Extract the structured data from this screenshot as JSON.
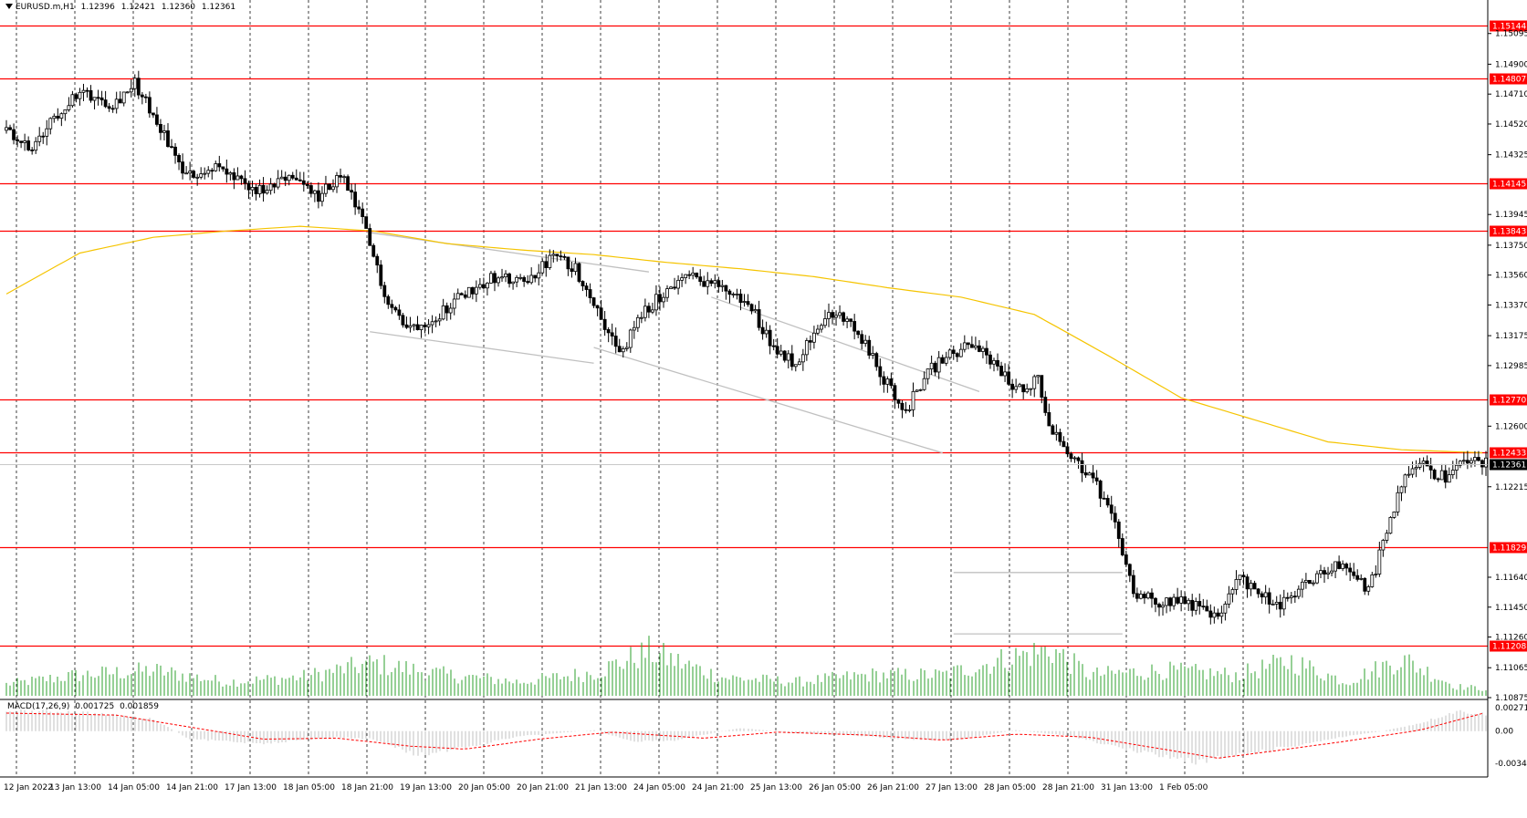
{
  "header": {
    "symbol": "EURUSD.m,H1",
    "open": "1.12396",
    "high": "1.12421",
    "low": "1.12360",
    "close": "1.12361"
  },
  "macd_header": {
    "label": "MACD(17,26,9)",
    "main": "0.001725",
    "signal": "0.001859"
  },
  "chart_data": {
    "type": "candlestick",
    "symbol": "EURUSD.m",
    "timeframe": "H1",
    "ylim": [
      1.10875,
      1.1525
    ],
    "price_ticks": [
      "1.15095",
      "1.14900",
      "1.14710",
      "1.14520",
      "1.14325",
      "1.13945",
      "1.13750",
      "1.13560",
      "1.13370",
      "1.13175",
      "1.12985",
      "1.12600",
      "1.12215",
      "1.11640",
      "1.11450",
      "1.11260",
      "1.11065",
      "1.10875"
    ],
    "x_ticks": [
      "12 Jan 2022",
      "13 Jan 13:00",
      "14 Jan 05:00",
      "14 Jan 21:00",
      "17 Jan 13:00",
      "18 Jan 05:00",
      "18 Jan 21:00",
      "19 Jan 13:00",
      "20 Jan 05:00",
      "20 Jan 21:00",
      "21 Jan 13:00",
      "24 Jan 05:00",
      "24 Jan 21:00",
      "25 Jan 13:00",
      "26 Jan 05:00",
      "26 Jan 21:00",
      "27 Jan 13:00",
      "28 Jan 05:00",
      "28 Jan 21:00",
      "31 Jan 13:00",
      "1 Feb 05:00"
    ],
    "levels": [
      "1.15144",
      "1.14807",
      "1.14145",
      "1.13843",
      "1.12770",
      "1.12433",
      "1.11829",
      "1.11208"
    ],
    "current_price": "1.12361",
    "price_path": [
      [
        0,
        1.1448
      ],
      [
        8,
        1.1435
      ],
      [
        16,
        1.1462
      ],
      [
        22,
        1.1472
      ],
      [
        30,
        1.1465
      ],
      [
        36,
        1.1478
      ],
      [
        44,
        1.1445
      ],
      [
        50,
        1.1418
      ],
      [
        58,
        1.1425
      ],
      [
        66,
        1.1412
      ],
      [
        72,
        1.1408
      ],
      [
        78,
        1.142
      ],
      [
        86,
        1.1405
      ],
      [
        92,
        1.142
      ],
      [
        98,
        1.139
      ],
      [
        104,
        1.1345
      ],
      [
        110,
        1.1322
      ],
      [
        118,
        1.133
      ],
      [
        126,
        1.1345
      ],
      [
        134,
        1.1355
      ],
      [
        142,
        1.135
      ],
      [
        150,
        1.1368
      ],
      [
        156,
        1.136
      ],
      [
        162,
        1.1335
      ],
      [
        168,
        1.1305
      ],
      [
        174,
        1.133
      ],
      [
        180,
        1.1345
      ],
      [
        186,
        1.1355
      ],
      [
        192,
        1.1352
      ],
      [
        198,
        1.1345
      ],
      [
        204,
        1.1335
      ],
      [
        210,
        1.131
      ],
      [
        216,
        1.13
      ],
      [
        222,
        1.1325
      ],
      [
        228,
        1.1332
      ],
      [
        234,
        1.1315
      ],
      [
        240,
        1.129
      ],
      [
        246,
        1.127
      ],
      [
        252,
        1.1295
      ],
      [
        258,
        1.1305
      ],
      [
        264,
        1.1312
      ],
      [
        270,
        1.13
      ],
      [
        276,
        1.1283
      ],
      [
        282,
        1.129
      ],
      [
        286,
        1.1255
      ],
      [
        292,
        1.124
      ],
      [
        298,
        1.1222
      ],
      [
        304,
        1.119
      ],
      [
        308,
        1.1155
      ],
      [
        314,
        1.1148
      ],
      [
        320,
        1.115
      ],
      [
        326,
        1.1145
      ],
      [
        332,
        1.1138
      ],
      [
        336,
        1.1165
      ],
      [
        342,
        1.1155
      ],
      [
        348,
        1.1145
      ],
      [
        354,
        1.1158
      ],
      [
        360,
        1.1168
      ],
      [
        366,
        1.1172
      ],
      [
        372,
        1.1155
      ],
      [
        378,
        1.12
      ],
      [
        382,
        1.123
      ],
      [
        386,
        1.124
      ],
      [
        390,
        1.123
      ],
      [
        394,
        1.1226
      ],
      [
        398,
        1.124
      ],
      [
        403,
        1.1236
      ]
    ],
    "sma_path": [
      [
        0,
        1.1344
      ],
      [
        20,
        1.137
      ],
      [
        40,
        1.138
      ],
      [
        60,
        1.1384
      ],
      [
        80,
        1.1387
      ],
      [
        100,
        1.1384
      ],
      [
        120,
        1.1376
      ],
      [
        140,
        1.1372
      ],
      [
        160,
        1.1369
      ],
      [
        180,
        1.1364
      ],
      [
        200,
        1.136
      ],
      [
        220,
        1.1355
      ],
      [
        240,
        1.1348
      ],
      [
        260,
        1.1342
      ],
      [
        280,
        1.1331
      ],
      [
        300,
        1.1305
      ],
      [
        320,
        1.1278
      ],
      [
        340,
        1.1264
      ],
      [
        360,
        1.125
      ],
      [
        380,
        1.1245
      ],
      [
        403,
        1.1243
      ]
    ],
    "macd": {
      "ylim": [
        -0.003487,
        0.00271
      ],
      "ticks": [
        "0.00271",
        "0.00",
        "-0.003487"
      ],
      "histogram_path": [
        [
          0,
          0.002
        ],
        [
          20,
          0.0019
        ],
        [
          40,
          0.0012
        ],
        [
          50,
          -0.0008
        ],
        [
          70,
          -0.0012
        ],
        [
          90,
          -0.0006
        ],
        [
          100,
          -0.0008
        ],
        [
          112,
          -0.0024
        ],
        [
          125,
          -0.0016
        ],
        [
          140,
          -0.0005
        ],
        [
          160,
          0.0001
        ],
        [
          170,
          -0.001
        ],
        [
          182,
          -0.0009
        ],
        [
          200,
          0.0003
        ],
        [
          215,
          -0.0002
        ],
        [
          230,
          -0.0004
        ],
        [
          245,
          -0.0008
        ],
        [
          258,
          -0.0009
        ],
        [
          275,
          0.0001
        ],
        [
          290,
          -0.0005
        ],
        [
          305,
          -0.0018
        ],
        [
          315,
          -0.0025
        ],
        [
          325,
          -0.0031
        ],
        [
          335,
          -0.0024
        ],
        [
          350,
          -0.0015
        ],
        [
          365,
          -0.0005
        ],
        [
          375,
          0.0
        ],
        [
          385,
          0.0008
        ],
        [
          395,
          0.002
        ],
        [
          403,
          0.0017
        ]
      ],
      "signal_path": [
        [
          0,
          0.0018
        ],
        [
          30,
          0.0016
        ],
        [
          50,
          0.0004
        ],
        [
          70,
          -0.0008
        ],
        [
          90,
          -0.0007
        ],
        [
          110,
          -0.0015
        ],
        [
          125,
          -0.0018
        ],
        [
          145,
          -0.0008
        ],
        [
          165,
          -0.0001
        ],
        [
          190,
          -0.0007
        ],
        [
          210,
          -0.0001
        ],
        [
          235,
          -0.0004
        ],
        [
          255,
          -0.0009
        ],
        [
          275,
          -0.0003
        ],
        [
          295,
          -0.0006
        ],
        [
          315,
          -0.0018
        ],
        [
          330,
          -0.0027
        ],
        [
          345,
          -0.002
        ],
        [
          365,
          -0.001
        ],
        [
          385,
          0.0001
        ],
        [
          403,
          0.00186
        ]
      ]
    },
    "volume_path": [
      [
        0,
        0.25
      ],
      [
        20,
        0.45
      ],
      [
        40,
        0.55
      ],
      [
        60,
        0.3
      ],
      [
        80,
        0.4
      ],
      [
        100,
        0.7
      ],
      [
        120,
        0.45
      ],
      [
        140,
        0.3
      ],
      [
        160,
        0.5
      ],
      [
        175,
        0.95
      ],
      [
        195,
        0.4
      ],
      [
        215,
        0.3
      ],
      [
        235,
        0.45
      ],
      [
        255,
        0.45
      ],
      [
        275,
        0.85
      ],
      [
        285,
        1.0
      ],
      [
        295,
        0.45
      ],
      [
        315,
        0.55
      ],
      [
        335,
        0.45
      ],
      [
        350,
        0.75
      ],
      [
        365,
        0.3
      ],
      [
        380,
        0.8
      ],
      [
        395,
        0.2
      ],
      [
        403,
        0.15
      ]
    ]
  },
  "colors": {
    "level_line": "#ff0000",
    "level_label_bg": "#ff0000",
    "sma": "#f5c400",
    "candles": "#000000",
    "volume": "#2ca02c",
    "macd_hist": "#c0c0c0",
    "macd_signal": "#ff0000",
    "trendline": "#c0c0c0",
    "current_label_bg": "#000000"
  }
}
